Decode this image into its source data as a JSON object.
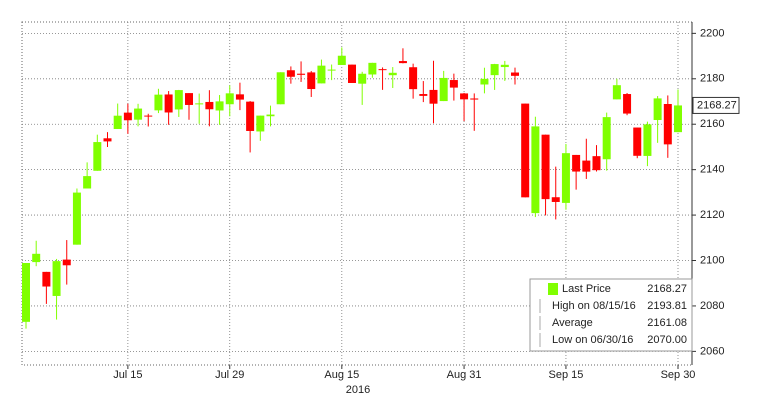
{
  "chart_data": {
    "type": "candlestick",
    "x_axis_label": "2016",
    "categories": [
      null,
      null,
      null,
      null,
      null,
      null,
      null,
      null,
      null,
      null,
      "Jul 15",
      null,
      null,
      null,
      null,
      null,
      null,
      null,
      null,
      null,
      "Jul 29",
      null,
      null,
      null,
      null,
      null,
      null,
      null,
      null,
      null,
      null,
      "Aug 15",
      null,
      null,
      null,
      null,
      null,
      null,
      null,
      null,
      null,
      null,
      null,
      "Aug 31",
      null,
      null,
      null,
      null,
      null,
      null,
      null,
      null,
      null,
      "Sep 15",
      null,
      null,
      null,
      null,
      null,
      null,
      null,
      null,
      null,
      null,
      "Sep 30"
    ],
    "open": [
      2073,
      2099.3,
      2095,
      2084.4,
      2100.4,
      2106.97,
      2131.7,
      2139.5,
      2153.8,
      2157.9,
      2165.1,
      2162.0,
      2163.8,
      2166.1,
      2173.1,
      2166.5,
      2173.7,
      2168.97,
      2169.8,
      2166.05,
      2168.8,
      2173.15,
      2169.94,
      2156.81,
      2163.51,
      2168.79,
      2183.76,
      2182.24,
      2182.81,
      2177.97,
      2183.74,
      2186.08,
      2186.24,
      2177.84,
      2181.9,
      2184.24,
      2181.58,
      2187.81,
      2185.09,
      2173.29,
      2175.1,
      2170.19,
      2179.45,
      2173.56,
      2171.33,
      2177.49,
      2181.61,
      2185.17,
      2182.76,
      2169.08,
      2120.86,
      2155.4,
      2127.86,
      2125.36,
      2146.48,
      2143.99,
      2145.94,
      2144.58,
      2170.94,
      2173.29,
      2158.54,
      2146.04,
      2161.85,
      2168.9,
      2156.51
    ],
    "high": [
      2098.9,
      2108.7,
      2095,
      2100.7,
      2109,
      2131.7,
      2143.2,
      2155.4,
      2156.5,
      2169.1,
      2169.05,
      2168.99,
      2164.6,
      2175.6,
      2174.6,
      2175.1,
      2173.7,
      2173.5,
      2174.98,
      2172.85,
      2177.09,
      2178.29,
      2170.2,
      2163.79,
      2168.19,
      2182.87,
      2185.44,
      2187.66,
      2183.41,
      2188.45,
      2186.28,
      2193.81,
      2186.24,
      2183.08,
      2187.03,
      2185.0,
      2185.15,
      2193.42,
      2186.66,
      2179.0,
      2187.94,
      2183.48,
      2182.27,
      2173.79,
      2173.56,
      2184.87,
      2186.57,
      2187.87,
      2184.94,
      2169.08,
      2163.3,
      2155.4,
      2141.33,
      2151.31,
      2146.48,
      2153.61,
      2150.8,
      2165.11,
      2179.99,
      2173.75,
      2158.54,
      2161.13,
      2172.4,
      2172.67,
      2175.3
    ],
    "low": [
      2070,
      2097.5,
      2080.9,
      2074.0,
      2089.4,
      2106.97,
      2131.7,
      2139.5,
      2149.97,
      2157.9,
      2155.8,
      2159.07,
      2159.0,
      2164.9,
      2159.75,
      2163.2,
      2161.95,
      2160.2,
      2159.07,
      2159.74,
      2163.49,
      2166.21,
      2147.58,
      2152.7,
      2159.07,
      2168.79,
      2177.85,
      2178.61,
      2172.0,
      2177.97,
      2179.42,
      2186.08,
      2178.14,
      2168.5,
      2180.46,
      2175.13,
      2175.96,
      2186.8,
      2171.25,
      2169.74,
      2160.39,
      2170.19,
      2170.41,
      2161.35,
      2157.09,
      2173.59,
      2175.1,
      2179.07,
      2177.49,
      2127.81,
      2119.12,
      2119.86,
      2118.09,
      2122.36,
      2131.2,
      2135.91,
      2139.17,
      2139.57,
      2170.94,
      2163.97,
      2145.04,
      2141.55,
      2151.79,
      2145.2,
      2156.51
    ],
    "close": [
      2098.9,
      2102.95,
      2088.55,
      2099.73,
      2097.9,
      2129.9,
      2137.16,
      2152.14,
      2152.43,
      2163.75,
      2161.74,
      2166.89,
      2163.78,
      2173.02,
      2165.17,
      2175.03,
      2168.48,
      2169.18,
      2166.58,
      2170.06,
      2173.6,
      2170.84,
      2157.03,
      2163.79,
      2164.25,
      2182.87,
      2180.89,
      2181.74,
      2175.49,
      2185.79,
      2184.05,
      2190.15,
      2178.15,
      2182.22,
      2187.02,
      2183.87,
      2182.64,
      2186.9,
      2175.44,
      2172.47,
      2169.04,
      2180.38,
      2176.12,
      2170.95,
      2170.86,
      2179.98,
      2186.48,
      2186.16,
      2181.3,
      2127.81,
      2159.04,
      2127.02,
      2125.77,
      2147.26,
      2139.16,
      2139.12,
      2139.76,
      2163.12,
      2177.18,
      2164.69,
      2146.1,
      2159.93,
      2171.37,
      2151.13,
      2168.27
    ],
    "up_color": "#80ff00",
    "down_color": "#ff0000",
    "ylim": [
      2054,
      2205
    ],
    "yticks": [
      2060,
      2080,
      2100,
      2120,
      2140,
      2160,
      2180,
      2200
    ],
    "grid": true,
    "last_price": 2168.27,
    "last_price_label": "2168.27",
    "legend": [
      {
        "label": "Last Price",
        "value": 2168.27,
        "value_label": "2168.27"
      },
      {
        "label": "High on 08/15/16",
        "value": 2193.81,
        "value_label": "2193.81"
      },
      {
        "label": "Average",
        "value": 2161.08,
        "value_label": "2161.08"
      },
      {
        "label": "Low on 06/30/16",
        "value": 2070.0,
        "value_label": "2070.00"
      }
    ]
  }
}
